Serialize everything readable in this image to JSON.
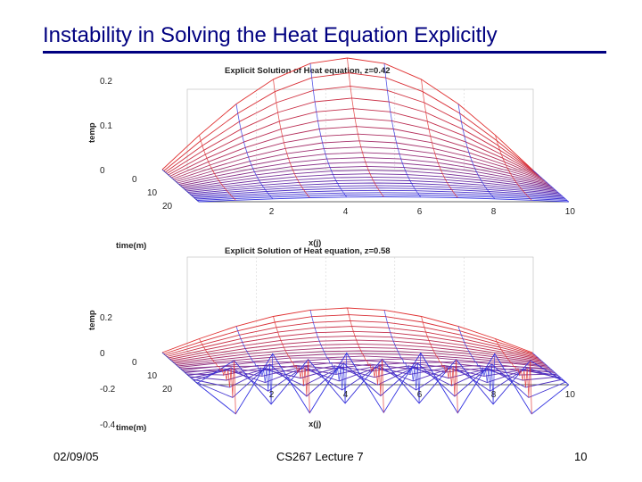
{
  "slide": {
    "title": "Instability in Solving the Heat Equation Explicitly",
    "footer_date": "02/09/05",
    "footer_center": "CS267 Lecture 7",
    "page_number": "10"
  },
  "colors": {
    "title": "#000080",
    "early_time_mesh": "#e03030",
    "late_time_mesh": "#3030e0"
  },
  "chart_data": [
    {
      "type": "surface",
      "title": "Explicit Solution of Heat equation, z=0.42",
      "xlabel": "x(j)",
      "ylabel": "time(m)",
      "zlabel": "temp",
      "x_ticks": [
        "2",
        "4",
        "6",
        "8",
        "10"
      ],
      "time_ticks": [
        "0",
        "10",
        "20"
      ],
      "z_ticks": [
        "0",
        "0.1",
        "0.2"
      ],
      "x_range": [
        0,
        10
      ],
      "time_range": [
        0,
        24
      ],
      "z_range": [
        0,
        0.25
      ],
      "initial_peak": 0.25,
      "stable": true
    },
    {
      "type": "surface",
      "title": "Explicit Solution of Heat equation, z=0.58",
      "xlabel": "x(j)",
      "ylabel": "time(m)",
      "zlabel": "temp",
      "x_ticks": [
        "2",
        "4",
        "6",
        "8",
        "10"
      ],
      "time_ticks": [
        "0",
        "10",
        "20"
      ],
      "z_ticks": [
        "0.2",
        "0",
        "-0.2",
        "-0.4"
      ],
      "x_range": [
        0,
        10
      ],
      "time_range": [
        0,
        24
      ],
      "z_range": [
        -0.5,
        0.25
      ],
      "initial_peak": 0.25,
      "stable": false
    }
  ]
}
